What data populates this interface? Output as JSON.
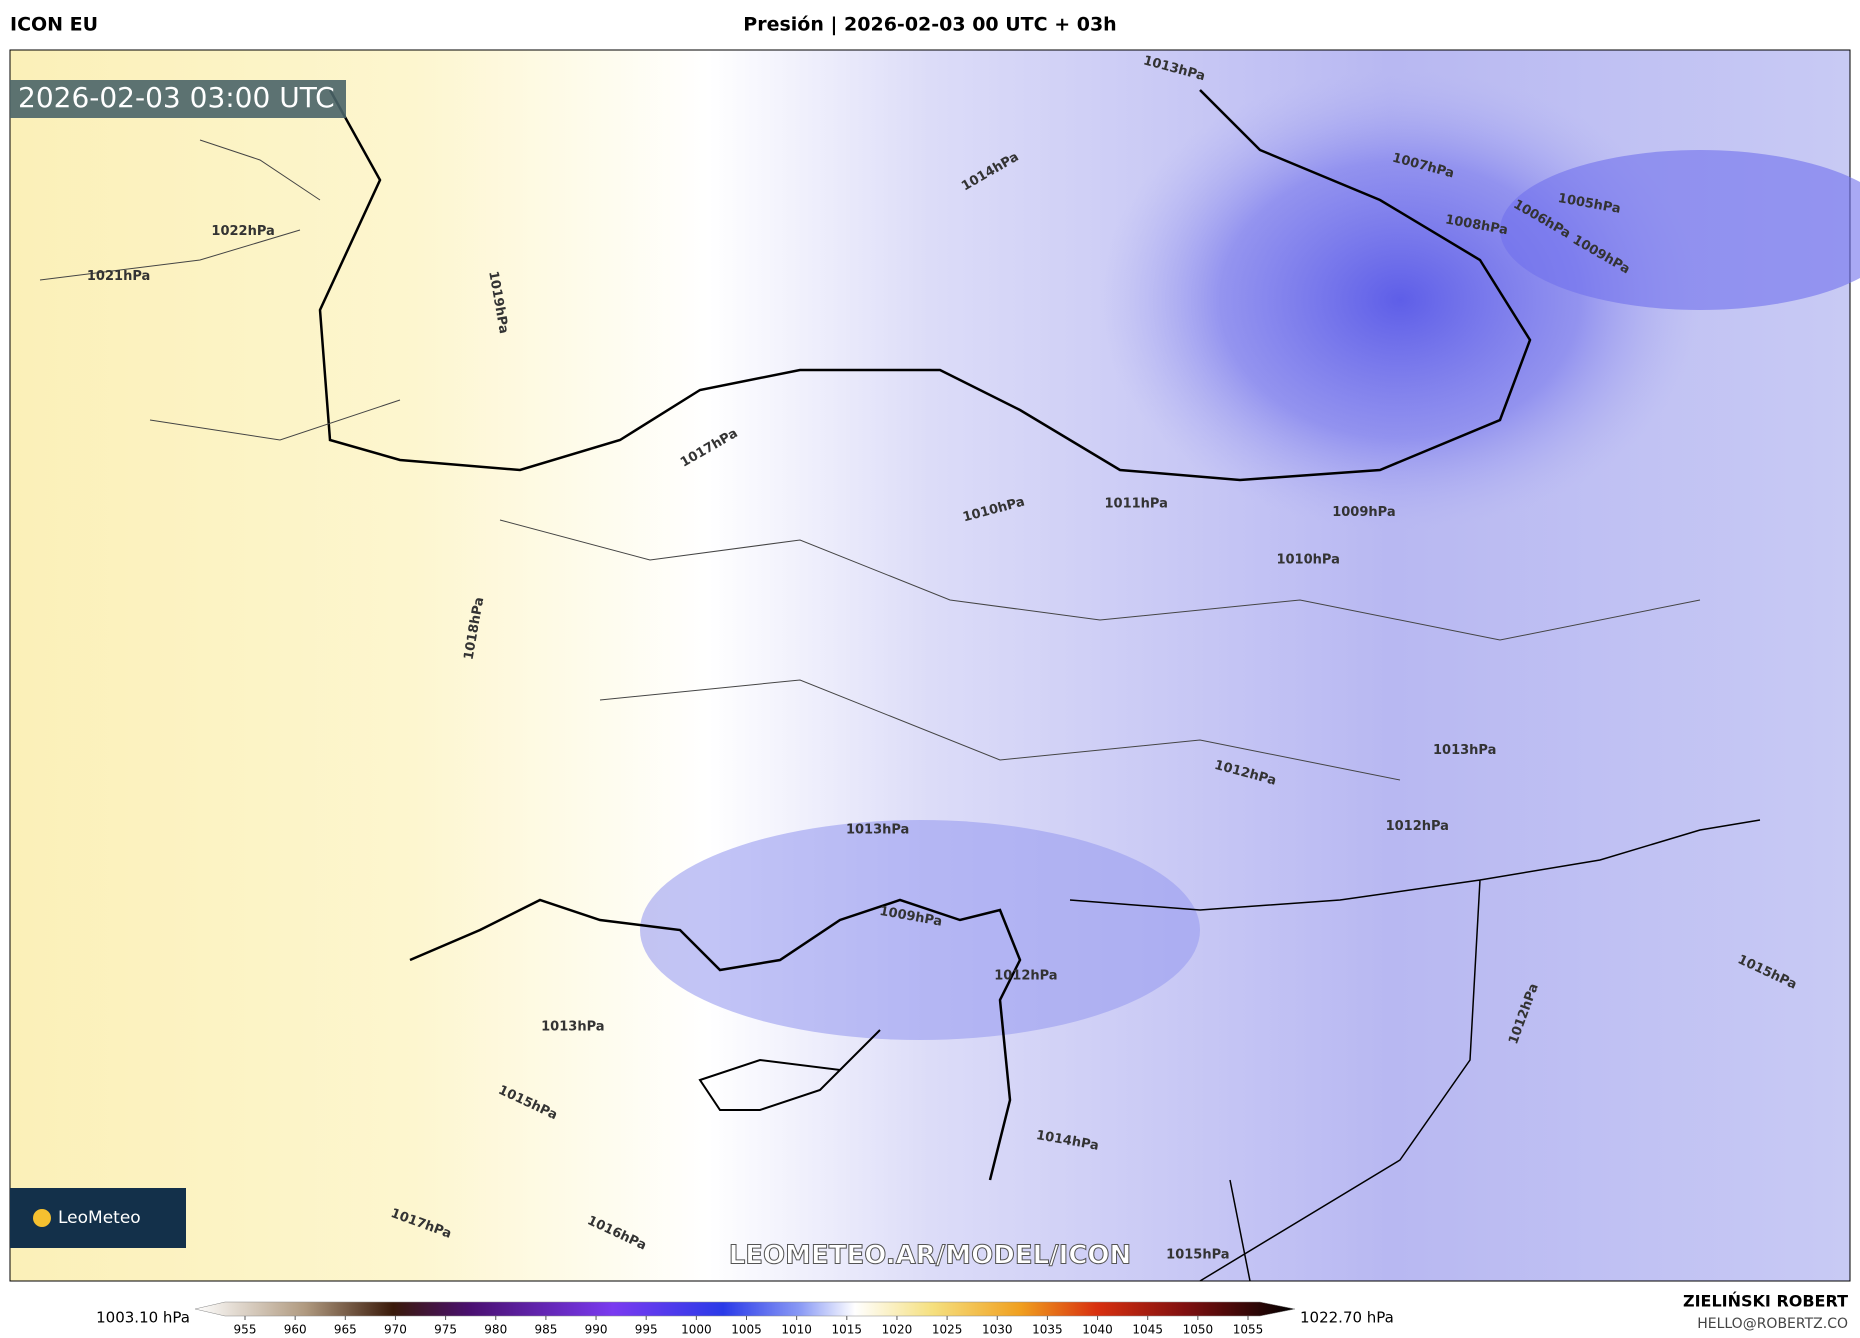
{
  "header": {
    "model": "ICON EU",
    "title": "Presión | 2026-02-03 00 UTC + 03h"
  },
  "map": {
    "timestamp": "2026-02-03 03:00 UTC",
    "watermark": "LEOMETEO.AR/MODEL/ICON",
    "logo": "LeoMeteo",
    "isobar_labels": [
      "1013hPa",
      "1014hPa",
      "1007hPa",
      "1005hPa",
      "1008hPa",
      "1006hPa",
      "1009hPa",
      "1022hPa",
      "1021hPa",
      "1019hPa",
      "1017hPa",
      "1010hPa",
      "1011hPa",
      "1009hPa",
      "1010hPa",
      "1018hPa",
      "1013hPa",
      "1012hPa",
      "1013hPa",
      "1012hPa",
      "1009hPa",
      "1012hPa",
      "1013hPa",
      "1015hPa",
      "1017hPa",
      "1016hPa",
      "1015hPa",
      "1014hPa",
      "1012hPa",
      "1015hPa"
    ]
  },
  "colorbar": {
    "min_label": "1003.10 hPa",
    "max_label": "1022.70 hPa",
    "ticks": [
      955,
      960,
      965,
      970,
      975,
      980,
      985,
      990,
      995,
      1000,
      1005,
      1010,
      1015,
      1020,
      1025,
      1030,
      1035,
      1040,
      1045,
      1050,
      1055
    ]
  },
  "footer": {
    "author": "ZIELIŃSKI ROBERT",
    "email": "HELLO@ROBERTZ.CO"
  }
}
